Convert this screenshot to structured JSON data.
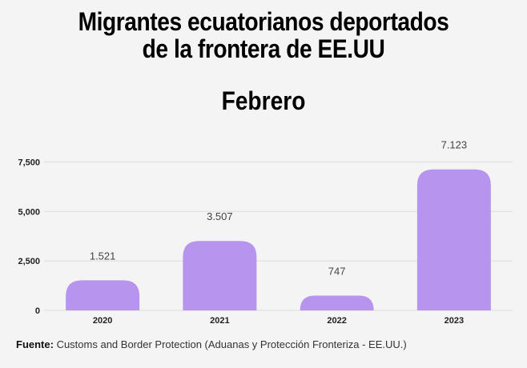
{
  "title_lines": [
    "Migrantes ecuatorianos deportados",
    "de la frontera de EE.UU"
  ],
  "subtitle": "Febrero",
  "chart_data": {
    "type": "bar",
    "categories": [
      "2020",
      "2021",
      "2022",
      "2023"
    ],
    "values": [
      1521,
      3507,
      747,
      7123
    ],
    "data_labels": [
      "1.521",
      "3.507",
      "747",
      "7.123"
    ],
    "ylim": [
      0,
      8000
    ],
    "yticks": [
      0,
      2500,
      5000,
      7500
    ],
    "ytick_labels": [
      "0",
      "2,500",
      "5,000",
      "7,500"
    ],
    "grid": true,
    "bar_color": "#b794ee",
    "grid_color": "#dcdcdc"
  },
  "source": {
    "label": "Fuente:",
    "text": " Customs and Border Protection (Aduanas y Protección Fronteriza - EE.UU.)"
  }
}
